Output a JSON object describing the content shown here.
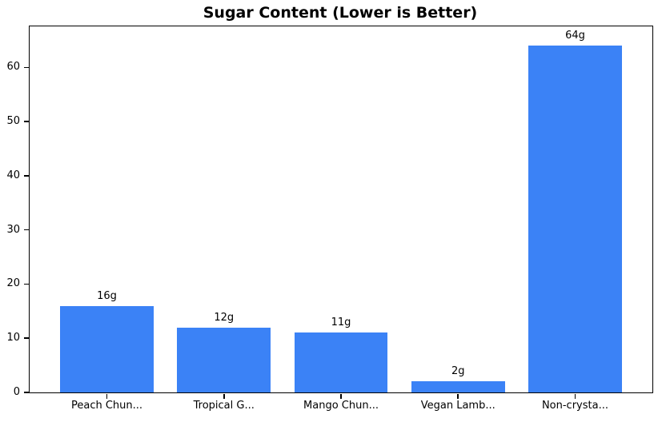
{
  "chart_data": {
    "type": "bar",
    "title": "Sugar Content (Lower is Better)",
    "categories": [
      "Peach Chun...",
      "Tropical G...",
      "Mango Chun...",
      "Vegan Lamb...",
      "Non-crysta..."
    ],
    "values": [
      16,
      12,
      11,
      2,
      64
    ],
    "value_labels": [
      "16g",
      "12g",
      "11g",
      "2g",
      "64g"
    ],
    "unit": "g",
    "xlabel": "",
    "ylabel": "",
    "yticks": [
      0,
      10,
      20,
      30,
      40,
      50,
      60
    ],
    "ylim": [
      0,
      67.6
    ],
    "xlim": [
      -0.66,
      4.66
    ],
    "bar_width": 0.8,
    "bar_color": "#3b82f6",
    "text_color": "#000000",
    "spine_color": "#000000",
    "grid": false,
    "legend_position": "none"
  }
}
